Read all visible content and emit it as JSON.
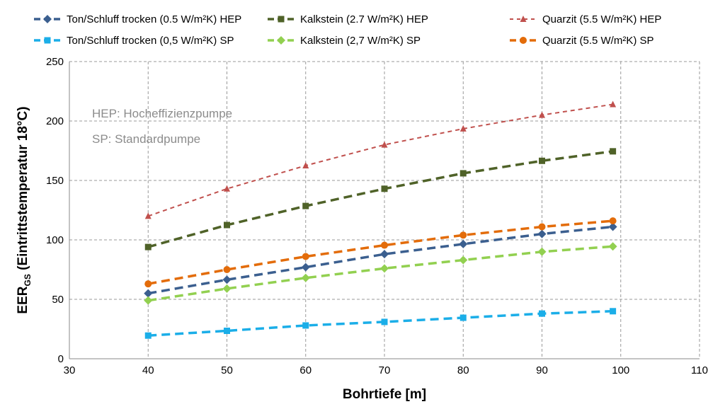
{
  "chart_data": {
    "type": "line",
    "xlabel": "Bohrtiefe [m]",
    "ylabel_main": "EER",
    "ylabel_sub": "GS",
    "ylabel_rest": " (Eintrittstemperatur 18°C)",
    "xlim": [
      30,
      110
    ],
    "ylim": [
      0,
      250
    ],
    "xticks": [
      30,
      40,
      50,
      60,
      70,
      80,
      90,
      100,
      110
    ],
    "yticks": [
      0,
      50,
      100,
      150,
      200,
      250
    ],
    "grid": true,
    "legend_position": "top",
    "annotations": [
      "HEP: Hocheffizienzpumpe",
      "SP: Standardpumpe"
    ],
    "x": [
      40,
      50,
      60,
      70,
      80,
      90,
      99
    ],
    "series": [
      {
        "name": "Ton/Schluff trocken (0.5 W/m²K) HEP",
        "color": "#3B5F8F",
        "marker": "diamond",
        "values": [
          55,
          66.5,
          77,
          88,
          96.5,
          105,
          111
        ]
      },
      {
        "name": "Kalkstein (2.7 W/m²K) HEP",
        "color": "#4F6228",
        "marker": "square",
        "values": [
          94,
          112.5,
          128.5,
          143,
          156,
          166.5,
          174.5
        ]
      },
      {
        "name": "Quarzit (5.5 W/m²K) HEP",
        "color": "#C0504D",
        "marker": "triangle",
        "values": [
          120,
          143,
          162.5,
          180,
          193.5,
          205,
          214
        ]
      },
      {
        "name": "Ton/Schluff trocken (0,5 W/m²K) SP",
        "color": "#1BAEE8",
        "marker": "square",
        "values": [
          19.5,
          23.5,
          28,
          31,
          34.5,
          38,
          40
        ]
      },
      {
        "name": "Kalkstein (2,7 W/m²K) SP",
        "color": "#92D050",
        "marker": "diamond",
        "values": [
          49,
          59,
          68,
          76,
          83,
          90,
          94.5
        ]
      },
      {
        "name": "Quarzit (5.5 W/m²K) SP",
        "color": "#E36C0A",
        "marker": "circle",
        "values": [
          63,
          75,
          86,
          95.5,
          104,
          111,
          116
        ]
      }
    ]
  }
}
